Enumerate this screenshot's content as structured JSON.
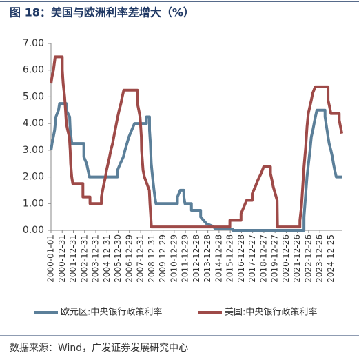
{
  "chart_data": {
    "type": "line",
    "title": "图 18：美国与欧洲利率差增大（%）",
    "source": "数据来源：Wind，广发证券发展研究中心",
    "xlim": [
      "2000-01-01",
      "2025-12-31"
    ],
    "xticks": [
      "2000-01-01",
      "2000-12-31",
      "2001-12-31",
      "2002-12-31",
      "2003-12-31",
      "2004-12-31",
      "2005-12-30",
      "2006-12-29",
      "2007-12-31",
      "2008-12-31",
      "2009-12-29",
      "2010-12-29",
      "2011-12-29",
      "2012-12-28",
      "2013-12-28",
      "2014-12-28",
      "2015-12-28",
      "2016-12-28",
      "2017-12-27",
      "2018-12-27",
      "2019-12-27",
      "2020-12-26",
      "2021-12-26",
      "2022-12-26",
      "2023-12-26",
      "2024-12-25"
    ],
    "ylim": [
      0,
      7
    ],
    "yticks": [
      {
        "value": 0,
        "label": "0.00"
      },
      {
        "value": 1,
        "label": "1.00"
      },
      {
        "value": 2,
        "label": "2.00"
      },
      {
        "value": 3,
        "label": "3.00"
      },
      {
        "value": 4,
        "label": "4.00"
      },
      {
        "value": 5,
        "label": "5.00"
      },
      {
        "value": 6,
        "label": "6.00"
      },
      {
        "value": 7,
        "label": "7.00"
      }
    ],
    "series": [
      {
        "name": "欧元区:中央银行政策利率",
        "color": "#5b7f99",
        "x": [
          "2000-01-03",
          "2000-02-04",
          "2000-03-17",
          "2000-04-28",
          "2000-06-09",
          "2000-09-01",
          "2000-10-06",
          "2001-05-10",
          "2001-05-11",
          "2001-08-31",
          "2001-09-18",
          "2001-11-09",
          "2002-12-05",
          "2002-12-06",
          "2003-03-07",
          "2003-06-06",
          "2005-12-05",
          "2005-12-06",
          "2006-03-08",
          "2006-06-15",
          "2006-08-09",
          "2006-10-11",
          "2006-12-13",
          "2007-03-14",
          "2007-06-13",
          "2008-07-08",
          "2008-07-09",
          "2008-10-14",
          "2008-10-15",
          "2008-11-12",
          "2008-12-10",
          "2009-01-21",
          "2009-03-11",
          "2009-04-08",
          "2009-05-13",
          "2011-04-12",
          "2011-04-13",
          "2011-07-13",
          "2011-11-08",
          "2011-11-09",
          "2011-12-14",
          "2012-07-10",
          "2012-07-11",
          "2013-05-07",
          "2013-05-08",
          "2013-11-13",
          "2014-06-11",
          "2014-09-10",
          "2016-03-15",
          "2016-03-16",
          "2022-07-26",
          "2022-07-27",
          "2022-09-14",
          "2022-11-02",
          "2022-12-21",
          "2023-02-08",
          "2023-03-22",
          "2023-05-10",
          "2023-06-21",
          "2023-08-02",
          "2023-09-20",
          "2024-06-11",
          "2024-06-12",
          "2024-09-18",
          "2024-10-23",
          "2024-12-18",
          "2025-02-05",
          "2025-03-12",
          "2025-04-23",
          "2025-06-11",
          "2025-12-31"
        ],
        "values": [
          3.0,
          3.25,
          3.5,
          3.75,
          4.25,
          4.5,
          4.75,
          4.75,
          4.5,
          4.25,
          3.75,
          3.25,
          3.25,
          2.75,
          2.5,
          2.0,
          2.0,
          2.25,
          2.5,
          2.75,
          3.0,
          3.25,
          3.5,
          3.75,
          4.0,
          4.0,
          4.25,
          4.25,
          3.75,
          3.25,
          2.5,
          2.0,
          1.5,
          1.25,
          1.0,
          1.0,
          1.25,
          1.5,
          1.5,
          1.25,
          1.0,
          1.0,
          0.75,
          0.75,
          0.5,
          0.25,
          0.15,
          0.05,
          0.05,
          0,
          0,
          0.5,
          1.25,
          2.0,
          2.5,
          3.0,
          3.5,
          3.75,
          4.0,
          4.25,
          4.5,
          4.5,
          4.25,
          3.5,
          3.25,
          3.0,
          2.75,
          2.5,
          2.25,
          2.0,
          2.0
        ]
      },
      {
        "name": "美国:中央银行政策利率",
        "color": "#9e4a48",
        "x": [
          "2000-01-03",
          "2000-02-02",
          "2000-03-21",
          "2000-05-16",
          "2001-01-02",
          "2001-01-03",
          "2001-01-31",
          "2001-03-20",
          "2001-04-18",
          "2001-05-15",
          "2001-06-27",
          "2001-08-21",
          "2001-09-17",
          "2001-10-02",
          "2001-11-06",
          "2001-12-11",
          "2002-11-05",
          "2002-11-06",
          "2003-06-24",
          "2003-06-25",
          "2004-06-29",
          "2004-06-30",
          "2004-08-10",
          "2004-09-21",
          "2004-11-10",
          "2004-12-14",
          "2005-02-02",
          "2005-03-22",
          "2005-05-03",
          "2005-06-30",
          "2005-08-09",
          "2005-09-20",
          "2005-11-01",
          "2005-12-13",
          "2006-01-31",
          "2006-03-28",
          "2006-05-10",
          "2006-06-29",
          "2007-09-17",
          "2007-09-18",
          "2007-10-31",
          "2007-12-11",
          "2008-01-22",
          "2008-01-30",
          "2008-03-18",
          "2008-04-30",
          "2008-10-08",
          "2008-10-29",
          "2008-12-16",
          "2015-12-15",
          "2015-12-16",
          "2016-12-13",
          "2016-12-14",
          "2017-03-15",
          "2017-06-14",
          "2017-12-12",
          "2017-12-13",
          "2018-03-21",
          "2018-06-13",
          "2018-09-26",
          "2018-12-19",
          "2019-07-30",
          "2019-07-31",
          "2019-09-18",
          "2019-10-30",
          "2020-03-03",
          "2020-03-15",
          "2022-03-15",
          "2022-03-16",
          "2022-05-04",
          "2022-06-15",
          "2022-07-27",
          "2022-09-21",
          "2022-11-02",
          "2022-12-14",
          "2023-02-01",
          "2023-03-22",
          "2023-05-03",
          "2023-07-26",
          "2024-09-17",
          "2024-09-18",
          "2024-11-07",
          "2024-12-18",
          "2025-09-16",
          "2025-09-17",
          "2025-10-29",
          "2025-12-10"
        ],
        "values": [
          5.5,
          5.75,
          6.0,
          6.5,
          6.5,
          6.0,
          5.5,
          5.0,
          4.5,
          4.0,
          3.75,
          3.5,
          3.0,
          2.5,
          2.0,
          1.75,
          1.75,
          1.25,
          1.25,
          1.0,
          1.0,
          1.25,
          1.5,
          1.75,
          2.0,
          2.25,
          2.5,
          2.75,
          3.0,
          3.25,
          3.5,
          3.75,
          4.0,
          4.25,
          4.5,
          4.75,
          5.0,
          5.25,
          5.25,
          4.75,
          4.5,
          4.25,
          3.5,
          3.0,
          2.25,
          2.0,
          1.5,
          1.0,
          0.125,
          0.125,
          0.375,
          0.375,
          0.625,
          0.875,
          1.125,
          1.125,
          1.375,
          1.625,
          1.875,
          2.125,
          2.375,
          2.375,
          2.125,
          1.875,
          1.625,
          1.125,
          0.125,
          0.125,
          0.375,
          0.875,
          1.625,
          2.375,
          3.125,
          3.875,
          4.375,
          4.625,
          4.875,
          5.125,
          5.375,
          5.375,
          4.875,
          4.625,
          4.375,
          4.375,
          4.125,
          3.875,
          3.625
        ]
      }
    ]
  }
}
